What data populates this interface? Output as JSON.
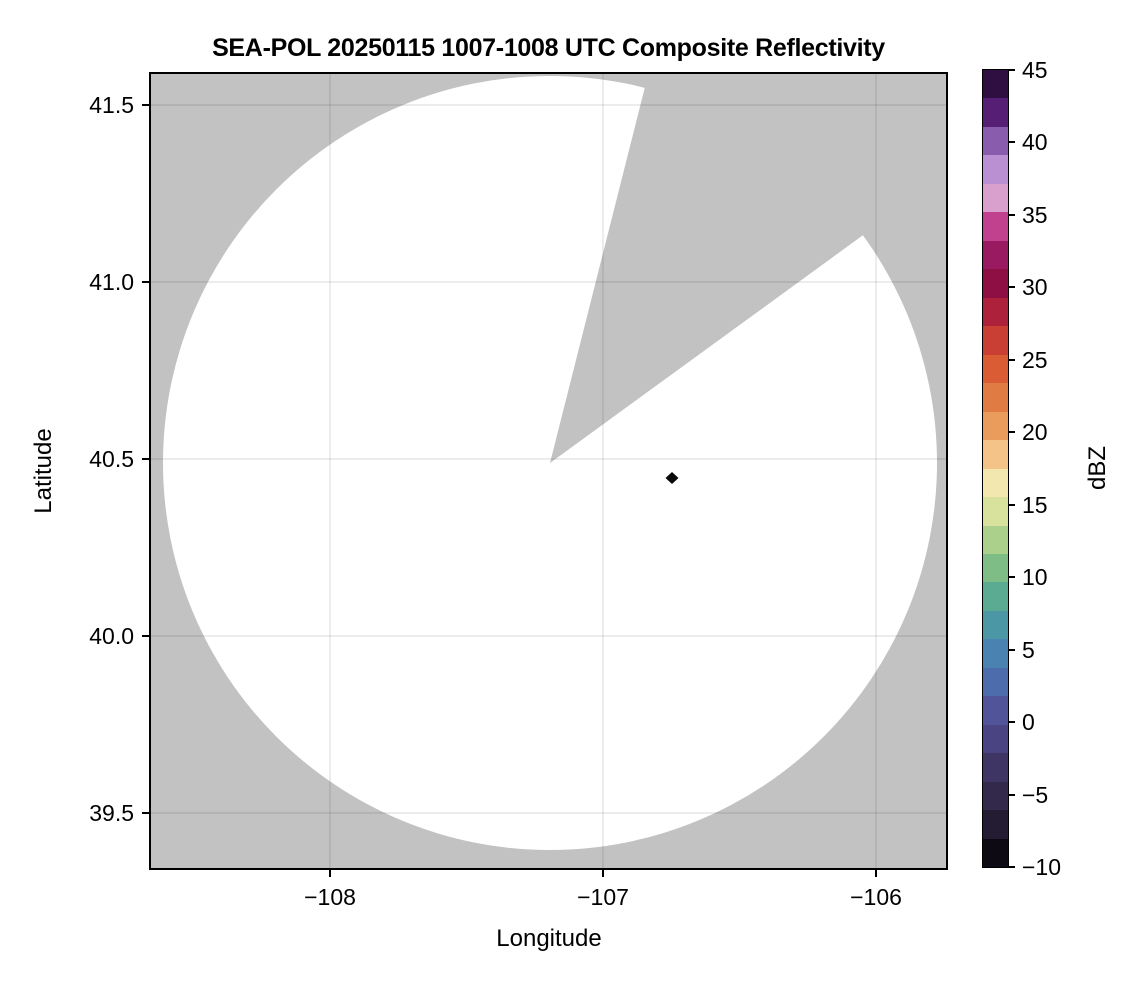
{
  "title": "SEA-POL 20250115 1007-1008 UTC Composite Reflectivity",
  "chart_data": {
    "type": "heatmap",
    "subtype": "radar-ppi-composite-reflectivity",
    "title": "SEA-POL 20250115 1007-1008 UTC Composite Reflectivity",
    "xlabel": "Longitude",
    "ylabel": "Latitude",
    "x_ticks": [
      -108,
      -107,
      -106
    ],
    "x_tick_labels": [
      "−108",
      "−107",
      "−106"
    ],
    "y_ticks": [
      41.5,
      41.0,
      40.5,
      40.0,
      39.5
    ],
    "y_tick_labels": [
      "41.5",
      "41.0",
      "40.5",
      "40.0",
      "39.5"
    ],
    "xlim": [
      -108.67,
      -105.73
    ],
    "ylim": [
      39.34,
      41.59
    ],
    "grid": true,
    "gridline_color": "rgba(0,0,0,0.10)",
    "radar": {
      "name": "SEA-POL",
      "center_lon": -107.19,
      "center_lat": 40.49,
      "range_deg_lon": 1.42,
      "coverage_fill": "#ffffff",
      "no_data_fill": "#c2c2c2",
      "blocked_sector_azimuth_deg": [
        14,
        54
      ]
    },
    "data_points": [
      {
        "lon": -106.75,
        "lat": 40.45,
        "value_dbz": -9,
        "color": "#0a0a0a",
        "marker": "diamond"
      }
    ],
    "colorbar": {
      "label": "dBZ",
      "vmin": -10,
      "vmax": 45,
      "ticks": [
        45,
        40,
        35,
        30,
        25,
        20,
        15,
        10,
        5,
        0,
        -5,
        -10
      ],
      "tick_labels": [
        "45",
        "40",
        "35",
        "30",
        "25",
        "20",
        "15",
        "10",
        "5",
        "0",
        "−5",
        "−10"
      ],
      "band_colors_top_to_bottom": [
        "#2f0e42",
        "#561f75",
        "#8a5cae",
        "#bb90d2",
        "#d9a0ce",
        "#c2418f",
        "#9a1a62",
        "#8d0f44",
        "#ad213a",
        "#c93f34",
        "#d95c35",
        "#e07b43",
        "#ea9c5d",
        "#f3c388",
        "#f2e7ae",
        "#d8e29c",
        "#abd08b",
        "#7fbd87",
        "#5aab91",
        "#4b97a5",
        "#4a82b2",
        "#4d6cac",
        "#515498",
        "#4b4482",
        "#3f3565",
        "#32294b",
        "#231c33",
        "#0d0a14"
      ]
    }
  }
}
